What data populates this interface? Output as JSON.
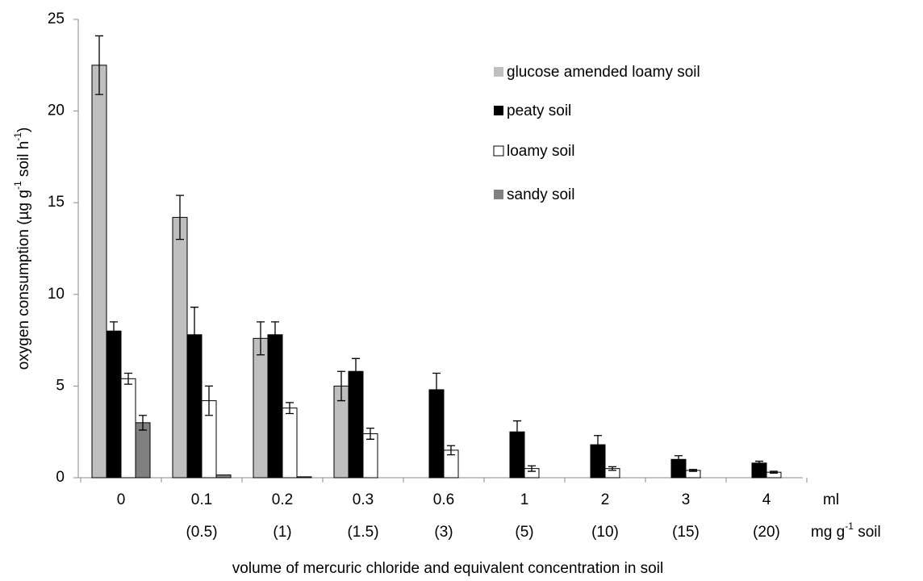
{
  "chart_data": {
    "type": "bar",
    "y_label": [
      "oxygen consumption (µg g",
      "-1",
      " soil h",
      "-1",
      ")"
    ],
    "x_label": "volume of mercuric chloride and equivalent concentration in soil",
    "x_row_labels": [
      [
        "ml"
      ],
      [
        "mg g",
        "-1",
        " soil"
      ]
    ],
    "categories": [
      "0",
      "0.1",
      "0.2",
      "0.3",
      "0.6",
      "1",
      "2",
      "3",
      "4"
    ],
    "concentrations": [
      null,
      "(0.5)",
      "(1)",
      "(1.5)",
      "(3)",
      "(5)",
      "(10)",
      "(15)",
      "(20)"
    ],
    "series": [
      {
        "name": "glucose amended loamy soil",
        "color": "#bfbfbf",
        "values": [
          22.5,
          14.2,
          7.6,
          5.0,
          0,
          0,
          0,
          0,
          0
        ],
        "errors": [
          1.6,
          1.2,
          0.9,
          0.8,
          null,
          null,
          null,
          null,
          null
        ]
      },
      {
        "name": "peaty soil",
        "color": "#000000",
        "values": [
          8.0,
          7.8,
          7.8,
          5.8,
          4.8,
          2.5,
          1.8,
          1.0,
          0.8
        ],
        "errors": [
          0.5,
          1.5,
          0.7,
          0.7,
          0.9,
          0.6,
          0.5,
          0.2,
          0.1
        ]
      },
      {
        "name": "loamy soil",
        "color": "#ffffff",
        "values": [
          5.4,
          4.2,
          3.8,
          2.4,
          1.5,
          0.5,
          0.5,
          0.4,
          0.3
        ],
        "errors": [
          0.3,
          0.8,
          0.3,
          0.3,
          0.25,
          0.15,
          0.1,
          0.05,
          0.05
        ]
      },
      {
        "name": "sandy soil",
        "color": "#808080",
        "values": [
          3.0,
          0.15,
          0.05,
          0,
          0,
          0,
          0,
          0,
          0
        ],
        "errors": [
          0.4,
          null,
          null,
          null,
          null,
          null,
          null,
          null,
          null
        ]
      }
    ],
    "ylim": [
      0,
      25
    ],
    "yticks": [
      0,
      5,
      10,
      15,
      20,
      25
    ],
    "legend": "upper right"
  }
}
